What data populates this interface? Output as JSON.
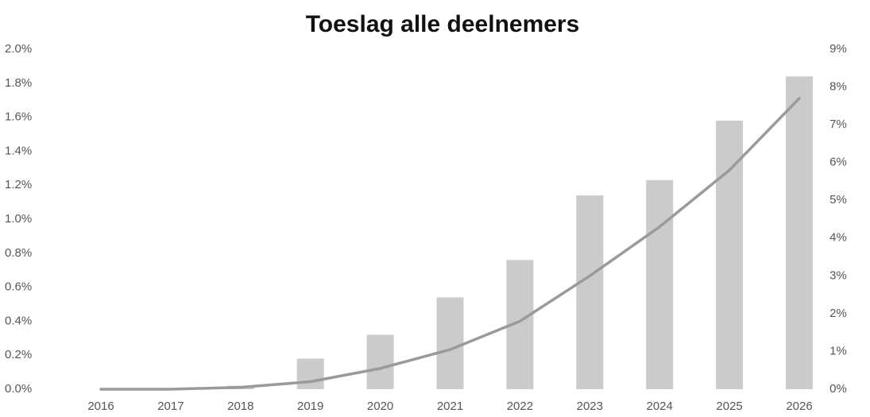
{
  "chart_data": {
    "type": "bar_line",
    "title": "Toeslag alle deelnemers",
    "categories": [
      "2016",
      "2017",
      "2018",
      "2019",
      "2020",
      "2021",
      "2022",
      "2023",
      "2024",
      "2025",
      "2026"
    ],
    "series": [
      {
        "type": "bar",
        "color": "#cbcbcb",
        "values": [
          0,
          0,
          0.02,
          0.18,
          0.32,
          0.54,
          0.76,
          1.14,
          1.23,
          1.58,
          1.84
        ]
      },
      {
        "type": "line",
        "axis": "y2",
        "color": "#9a9a9a",
        "values": [
          0,
          0,
          0.05,
          0.2,
          0.55,
          1.05,
          1.8,
          3.0,
          4.3,
          5.8,
          7.7
        ]
      }
    ],
    "ylim": [
      0,
      2.0
    ],
    "yticks": [
      {
        "value": 0,
        "label": "0.0%"
      },
      {
        "value": 0.2,
        "label": "0.2%"
      },
      {
        "value": 0.4,
        "label": "0.4%"
      },
      {
        "value": 0.6,
        "label": "0.6%"
      },
      {
        "value": 0.8,
        "label": "0.8%"
      },
      {
        "value": 1.0,
        "label": "1.0%"
      },
      {
        "value": 1.2,
        "label": "1.2%"
      },
      {
        "value": 1.4,
        "label": "1.4%"
      },
      {
        "value": 1.6,
        "label": "1.6%"
      },
      {
        "value": 1.8,
        "label": "1.8%"
      },
      {
        "value": 2.0,
        "label": "2.0%"
      }
    ],
    "y2lim": [
      0,
      9
    ],
    "y2ticks": [
      {
        "value": 0,
        "label": "0%"
      },
      {
        "value": 1,
        "label": "1%"
      },
      {
        "value": 2,
        "label": "2%"
      },
      {
        "value": 3,
        "label": "3%"
      },
      {
        "value": 4,
        "label": "4%"
      },
      {
        "value": 5,
        "label": "5%"
      },
      {
        "value": 6,
        "label": "6%"
      },
      {
        "value": 7,
        "label": "7%"
      },
      {
        "value": 8,
        "label": "8%"
      },
      {
        "value": 9,
        "label": "9%"
      }
    ],
    "grid": false
  }
}
